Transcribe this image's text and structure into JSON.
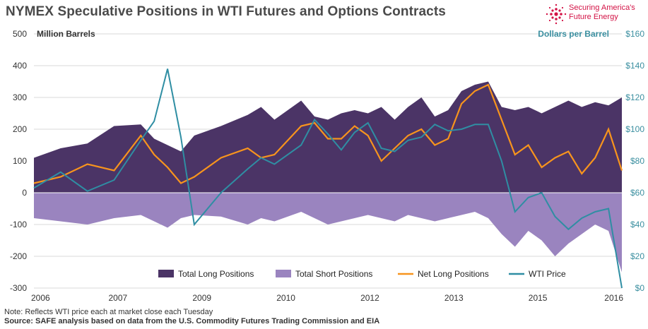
{
  "title": "NYMEX Speculative Positions in WTI Futures and Options Contracts",
  "logo": {
    "line1": "Securing America's",
    "line2": "Future Energy",
    "color": "#d31245"
  },
  "notes": {
    "note": "Note: Reflects WTI price each at market close each Tuesday",
    "source": "Source: SAFE analysis based on data from the U.S. Commodity Futures Trading Commission and EIA"
  },
  "colors": {
    "total_long": "#4b3466",
    "total_short": "#9a84bf",
    "net_long": "#f7941d",
    "wti_price": "#2f8ea3",
    "zero_line": "#ffffff"
  },
  "chart_data": {
    "type": "area",
    "xlabel": "",
    "x_ticks": [
      "2006",
      "2007",
      "2009",
      "2010",
      "2012",
      "2013",
      "2015",
      "2016"
    ],
    "x": [
      2006.0,
      2006.5,
      2007.0,
      2007.5,
      2008.0,
      2008.25,
      2008.5,
      2008.75,
      2009.0,
      2009.5,
      2010.0,
      2010.25,
      2010.5,
      2011.0,
      2011.25,
      2011.5,
      2011.75,
      2012.0,
      2012.25,
      2012.5,
      2012.75,
      2013.0,
      2013.25,
      2013.5,
      2013.75,
      2014.0,
      2014.25,
      2014.5,
      2014.75,
      2015.0,
      2015.25,
      2015.5,
      2015.75,
      2016.0,
      2016.25,
      2016.5,
      2016.75,
      2017.0
    ],
    "left_axis": {
      "label": "Million Barrels",
      "ylim": [
        -300,
        500
      ],
      "ticks": [
        "500",
        "400",
        "300",
        "200",
        "100",
        "0",
        "-100",
        "-200",
        "-300"
      ]
    },
    "right_axis": {
      "label": "Dollars per Barrel",
      "ylim": [
        0,
        160
      ],
      "ticks": [
        "$160",
        "$140",
        "$120",
        "$100",
        "$80",
        "$60",
        "$40",
        "$20",
        "$0"
      ]
    },
    "series": [
      {
        "name": "Total Long Positions",
        "axis": "left",
        "kind": "area",
        "values": [
          110,
          140,
          155,
          210,
          215,
          170,
          150,
          130,
          180,
          210,
          245,
          270,
          230,
          290,
          240,
          230,
          250,
          260,
          250,
          270,
          230,
          270,
          300,
          240,
          260,
          320,
          340,
          350,
          270,
          260,
          270,
          250,
          270,
          290,
          270,
          285,
          275,
          300
        ]
      },
      {
        "name": "Total Short Positions",
        "axis": "left",
        "kind": "area",
        "values": [
          -80,
          -90,
          -100,
          -80,
          -70,
          -90,
          -110,
          -80,
          -70,
          -75,
          -100,
          -80,
          -90,
          -60,
          -80,
          -100,
          -90,
          -80,
          -70,
          -80,
          -90,
          -70,
          -80,
          -90,
          -80,
          -70,
          -60,
          -80,
          -130,
          -170,
          -120,
          -150,
          -200,
          -160,
          -130,
          -100,
          -120,
          -250
        ]
      },
      {
        "name": "Net Long Positions",
        "axis": "left",
        "kind": "line",
        "values": [
          30,
          50,
          90,
          70,
          180,
          120,
          80,
          30,
          50,
          110,
          140,
          110,
          120,
          210,
          220,
          170,
          170,
          210,
          180,
          100,
          140,
          180,
          200,
          150,
          170,
          280,
          320,
          340,
          230,
          120,
          150,
          80,
          110,
          130,
          60,
          110,
          200,
          70
        ]
      },
      {
        "name": "WTI Price",
        "axis": "right",
        "kind": "line",
        "values": [
          63,
          73,
          61,
          68,
          93,
          105,
          138,
          95,
          40,
          60,
          75,
          82,
          78,
          90,
          106,
          97,
          87,
          98,
          104,
          88,
          86,
          93,
          95,
          103,
          99,
          100,
          103,
          103,
          80,
          48,
          57,
          60,
          45,
          37,
          44,
          48,
          50,
          0
        ]
      }
    ],
    "legend": {
      "placement": "bottom-center"
    },
    "grid": true
  }
}
